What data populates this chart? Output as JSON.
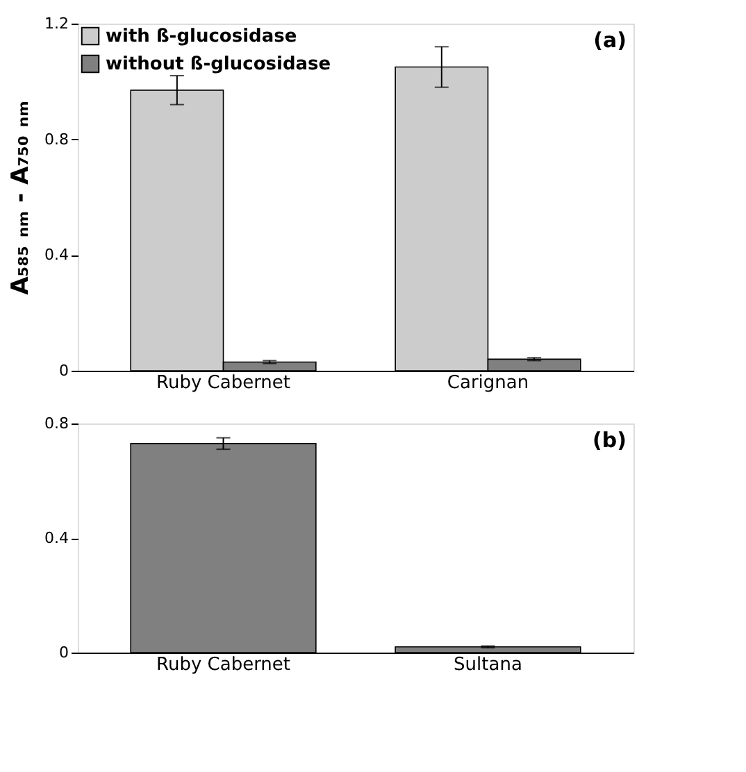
{
  "chart_data": [
    {
      "type": "bar",
      "categories": [
        "Ruby Cabernet",
        "Carignan"
      ],
      "ylabel": "A₅₈₅ ₙₘ - A₇₅₀ ₙₘ",
      "ylim": [
        0,
        1.2
      ],
      "yticks": [
        0,
        0.4,
        0.8,
        1.2
      ],
      "grid": false,
      "legend": "top left",
      "annotations": [
        "(a)"
      ],
      "series": [
        {
          "name": "with ß-glucosidase",
          "color": "#cccccc",
          "values": [
            0.97,
            1.05
          ],
          "errors": [
            0.05,
            0.07
          ]
        },
        {
          "name": "without ß-glucosidase",
          "color": "#808080",
          "values": [
            0.03,
            0.04
          ],
          "errors": [
            0.005,
            0.005
          ]
        }
      ]
    },
    {
      "type": "bar",
      "categories": [
        "Ruby Cabernet",
        "Sultana"
      ],
      "ylim": [
        0,
        0.8
      ],
      "yticks": [
        0,
        0.4,
        0.8
      ],
      "grid": false,
      "legend": false,
      "annotations": [
        "(b)"
      ],
      "series": [
        {
          "color": "#808080",
          "values": [
            0.73,
            0.02
          ],
          "errors": [
            0.02,
            0.003
          ]
        }
      ]
    }
  ]
}
